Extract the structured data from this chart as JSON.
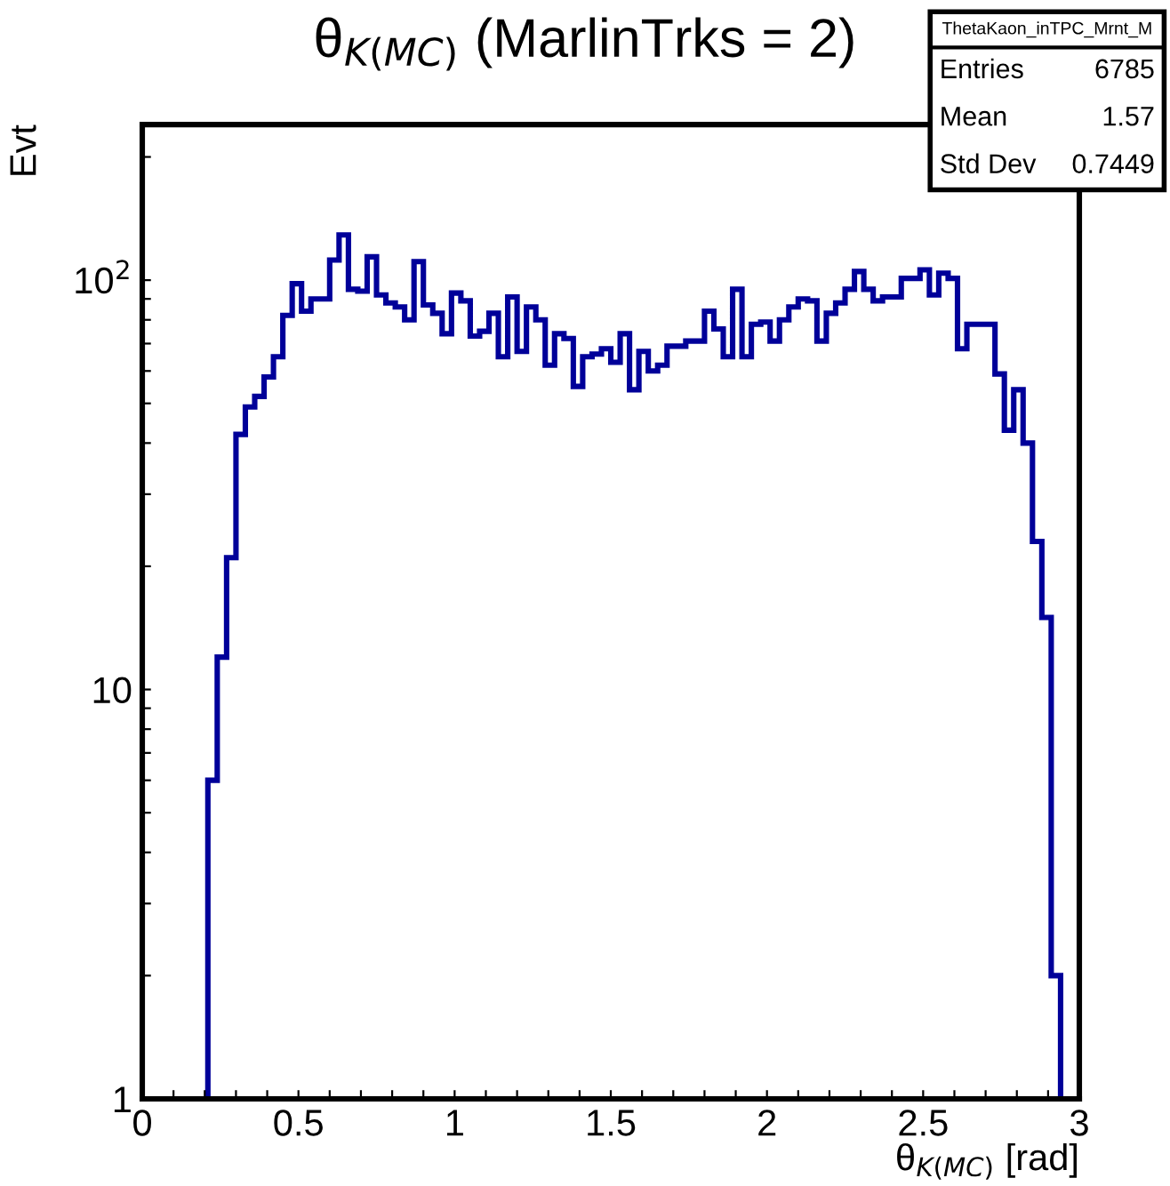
{
  "chart_data": {
    "type": "histogram",
    "title": "θ$_{K(MC)}$ (MarlinTrks = 2)",
    "xlabel": "θ$_{K(MC)}$ [rad]",
    "ylabel": "Evt",
    "annotations": [
      "ThetaKaon_inTPC_Mrnt_M",
      "Entries",
      "6785",
      "Mean",
      "1.57",
      "Std Dev",
      "0.7449"
    ],
    "bins": [
      0.21,
      0.24,
      0.27,
      0.3,
      0.33,
      0.36,
      0.39,
      0.42,
      0.45,
      0.48,
      0.51,
      0.54,
      0.57,
      0.6,
      0.63,
      0.66,
      0.69,
      0.72,
      0.75,
      0.78,
      0.81,
      0.84,
      0.87,
      0.9,
      0.93,
      0.96,
      0.99,
      1.02,
      1.05,
      1.08,
      1.11,
      1.14,
      1.17,
      1.2,
      1.23,
      1.26,
      1.29,
      1.32,
      1.35,
      1.38,
      1.41,
      1.44,
      1.47,
      1.5,
      1.53,
      1.56,
      1.59,
      1.62,
      1.65,
      1.68,
      1.71,
      1.74,
      1.77,
      1.8,
      1.83,
      1.86,
      1.89,
      1.92,
      1.95,
      1.98,
      2.01,
      2.04,
      2.07,
      2.1,
      2.13,
      2.16,
      2.19,
      2.22,
      2.25,
      2.28,
      2.31,
      2.34,
      2.37,
      2.4,
      2.43,
      2.46,
      2.49,
      2.52,
      2.55,
      2.58,
      2.61,
      2.64,
      2.67,
      2.7,
      2.73,
      2.76,
      2.79,
      2.82,
      2.85,
      2.88,
      2.91,
      2.94
    ],
    "values": [
      6,
      12,
      21,
      42,
      49,
      52,
      58,
      65,
      82,
      98,
      84,
      90,
      90,
      112,
      129,
      95,
      94,
      114,
      92,
      88,
      86,
      80,
      111,
      87,
      83,
      74,
      93,
      89,
      73,
      75,
      83,
      65,
      91,
      67,
      86,
      80,
      62,
      74,
      72,
      55,
      65,
      66,
      68,
      63,
      74,
      54,
      67,
      60,
      62,
      69,
      69,
      71,
      71,
      84,
      76,
      65,
      95,
      65,
      78,
      79,
      71,
      80,
      86,
      90,
      89,
      71,
      83,
      88,
      95,
      105,
      95,
      89,
      91,
      91,
      101,
      101,
      106,
      92,
      104,
      101,
      68,
      78,
      78,
      78,
      59,
      43,
      54,
      40,
      23,
      15,
      2
    ],
    "color": "#000099",
    "log": "y",
    "xlim": [
      0,
      3
    ],
    "ylim": [
      1,
      240
    ],
    "xticks": [
      0,
      {
        "value": 0.1,
        "label": null
      },
      {
        "value": 0.2,
        "label": null
      },
      {
        "value": 0.3,
        "label": null
      },
      {
        "value": 0.4,
        "label": null
      },
      0.5,
      {
        "value": 0.6,
        "label": null
      },
      {
        "value": 0.7,
        "label": null
      },
      {
        "value": 0.8,
        "label": null
      },
      {
        "value": 0.9,
        "label": null
      },
      1,
      {
        "value": 1.1,
        "label": null
      },
      {
        "value": 1.2,
        "label": null
      },
      {
        "value": 1.3,
        "label": null
      },
      {
        "value": 1.4,
        "label": null
      },
      1.5,
      {
        "value": 1.6,
        "label": null
      },
      {
        "value": 1.7,
        "label": null
      },
      {
        "value": 1.8,
        "label": null
      },
      {
        "value": 1.9,
        "label": null
      },
      2,
      {
        "value": 2.1,
        "label": null
      },
      {
        "value": 2.2,
        "label": null
      },
      {
        "value": 2.3,
        "label": null
      },
      {
        "value": 2.4,
        "label": null
      },
      2.5,
      {
        "value": 2.6,
        "label": null
      },
      {
        "value": 2.7,
        "label": null
      },
      {
        "value": 2.8,
        "label": null
      },
      {
        "value": 2.9,
        "label": null
      },
      3
    ],
    "yticks": [
      1,
      {
        "value": 2,
        "label": null
      },
      {
        "value": 3,
        "label": null
      },
      {
        "value": 4,
        "label": null
      },
      {
        "value": 5,
        "label": null
      },
      {
        "value": 6,
        "label": null
      },
      {
        "value": 7,
        "label": null
      },
      {
        "value": 8,
        "label": null
      },
      {
        "value": 9,
        "label": null
      },
      10,
      {
        "value": 20,
        "label": null
      },
      {
        "value": 30,
        "label": null
      },
      {
        "value": 40,
        "label": null
      },
      {
        "value": 50,
        "label": null
      },
      {
        "value": 60,
        "label": null
      },
      {
        "value": 70,
        "label": null
      },
      {
        "value": 80,
        "label": null
      },
      {
        "value": 90,
        "label": null
      },
      {
        "value": 100,
        "label": "10$^{2}$"
      },
      {
        "value": 200,
        "label": null
      }
    ],
    "grid": false,
    "legend": false
  }
}
